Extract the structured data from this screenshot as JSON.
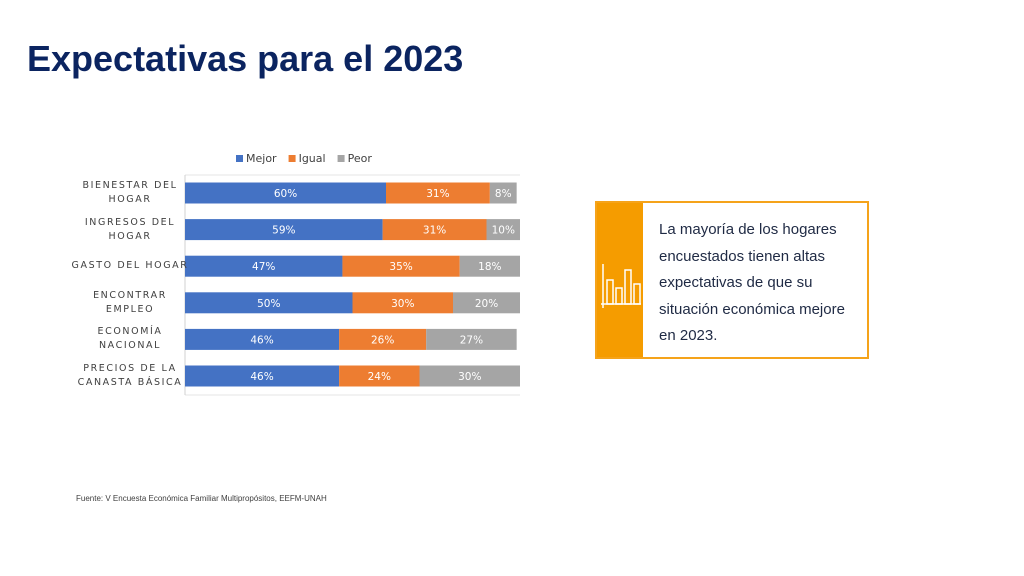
{
  "title": "Expectativas para el 2023",
  "chart_data": {
    "type": "stacked-barh",
    "categories": [
      "BIENESTAR DEL HOGAR",
      "INGRESOS DEL HOGAR",
      "GASTO DEL HOGAR",
      "ENCONTRAR EMPLEO",
      "ECONOMÍA NACIONAL",
      "PRECIOS DE LA CANASTA BÁSICA"
    ],
    "series": [
      {
        "name": "Mejor",
        "color": "#4472c4",
        "values": [
          60,
          59,
          47,
          50,
          46,
          46
        ],
        "value_labels": [
          "60%",
          "59%",
          "47%",
          "50%",
          "46%",
          "46%"
        ]
      },
      {
        "name": "Igual",
        "color": "#ed7d31",
        "values": [
          31,
          31,
          35,
          30,
          26,
          24
        ],
        "value_labels": [
          "31%",
          "31%",
          "35%",
          "30%",
          "26%",
          "24%"
        ]
      },
      {
        "name": "Peor",
        "color": "#a5a5a5",
        "values": [
          8,
          10,
          18,
          20,
          27,
          30
        ],
        "value_labels": [
          "8%",
          "10%",
          "18%",
          "20%",
          "27%",
          "30%"
        ]
      }
    ],
    "xlim": [
      0,
      100
    ],
    "legend": "top"
  },
  "callout": "La mayoría de los hogares encuestados tienen altas expectativas de que su situación económica mejore en 2023.",
  "source": "Fuente:  V Encuesta Económica Familiar Multipropósitos, EEFM-UNAH"
}
